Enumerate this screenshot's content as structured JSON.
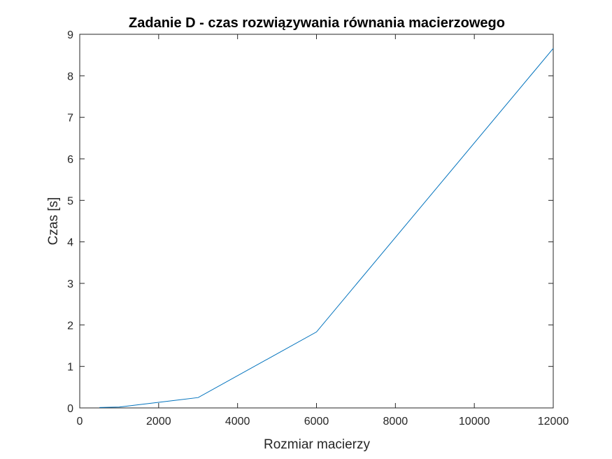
{
  "chart_data": {
    "type": "line",
    "title": "Zadanie D - czas rozwiązywania równania macierzowego",
    "xlabel": "Rozmiar macierzy",
    "ylabel": "Czas [s]",
    "xlim": [
      0,
      12000
    ],
    "ylim": [
      0,
      9
    ],
    "xticks": [
      0,
      2000,
      4000,
      6000,
      8000,
      10000,
      12000
    ],
    "yticks": [
      0,
      1,
      2,
      3,
      4,
      5,
      6,
      7,
      8,
      9
    ],
    "grid": false,
    "series": [
      {
        "color": "#0072BD",
        "x": [
          500,
          1000,
          3000,
          6000,
          12000
        ],
        "y": [
          0.01,
          0.02,
          0.25,
          1.83,
          8.66
        ]
      }
    ]
  }
}
